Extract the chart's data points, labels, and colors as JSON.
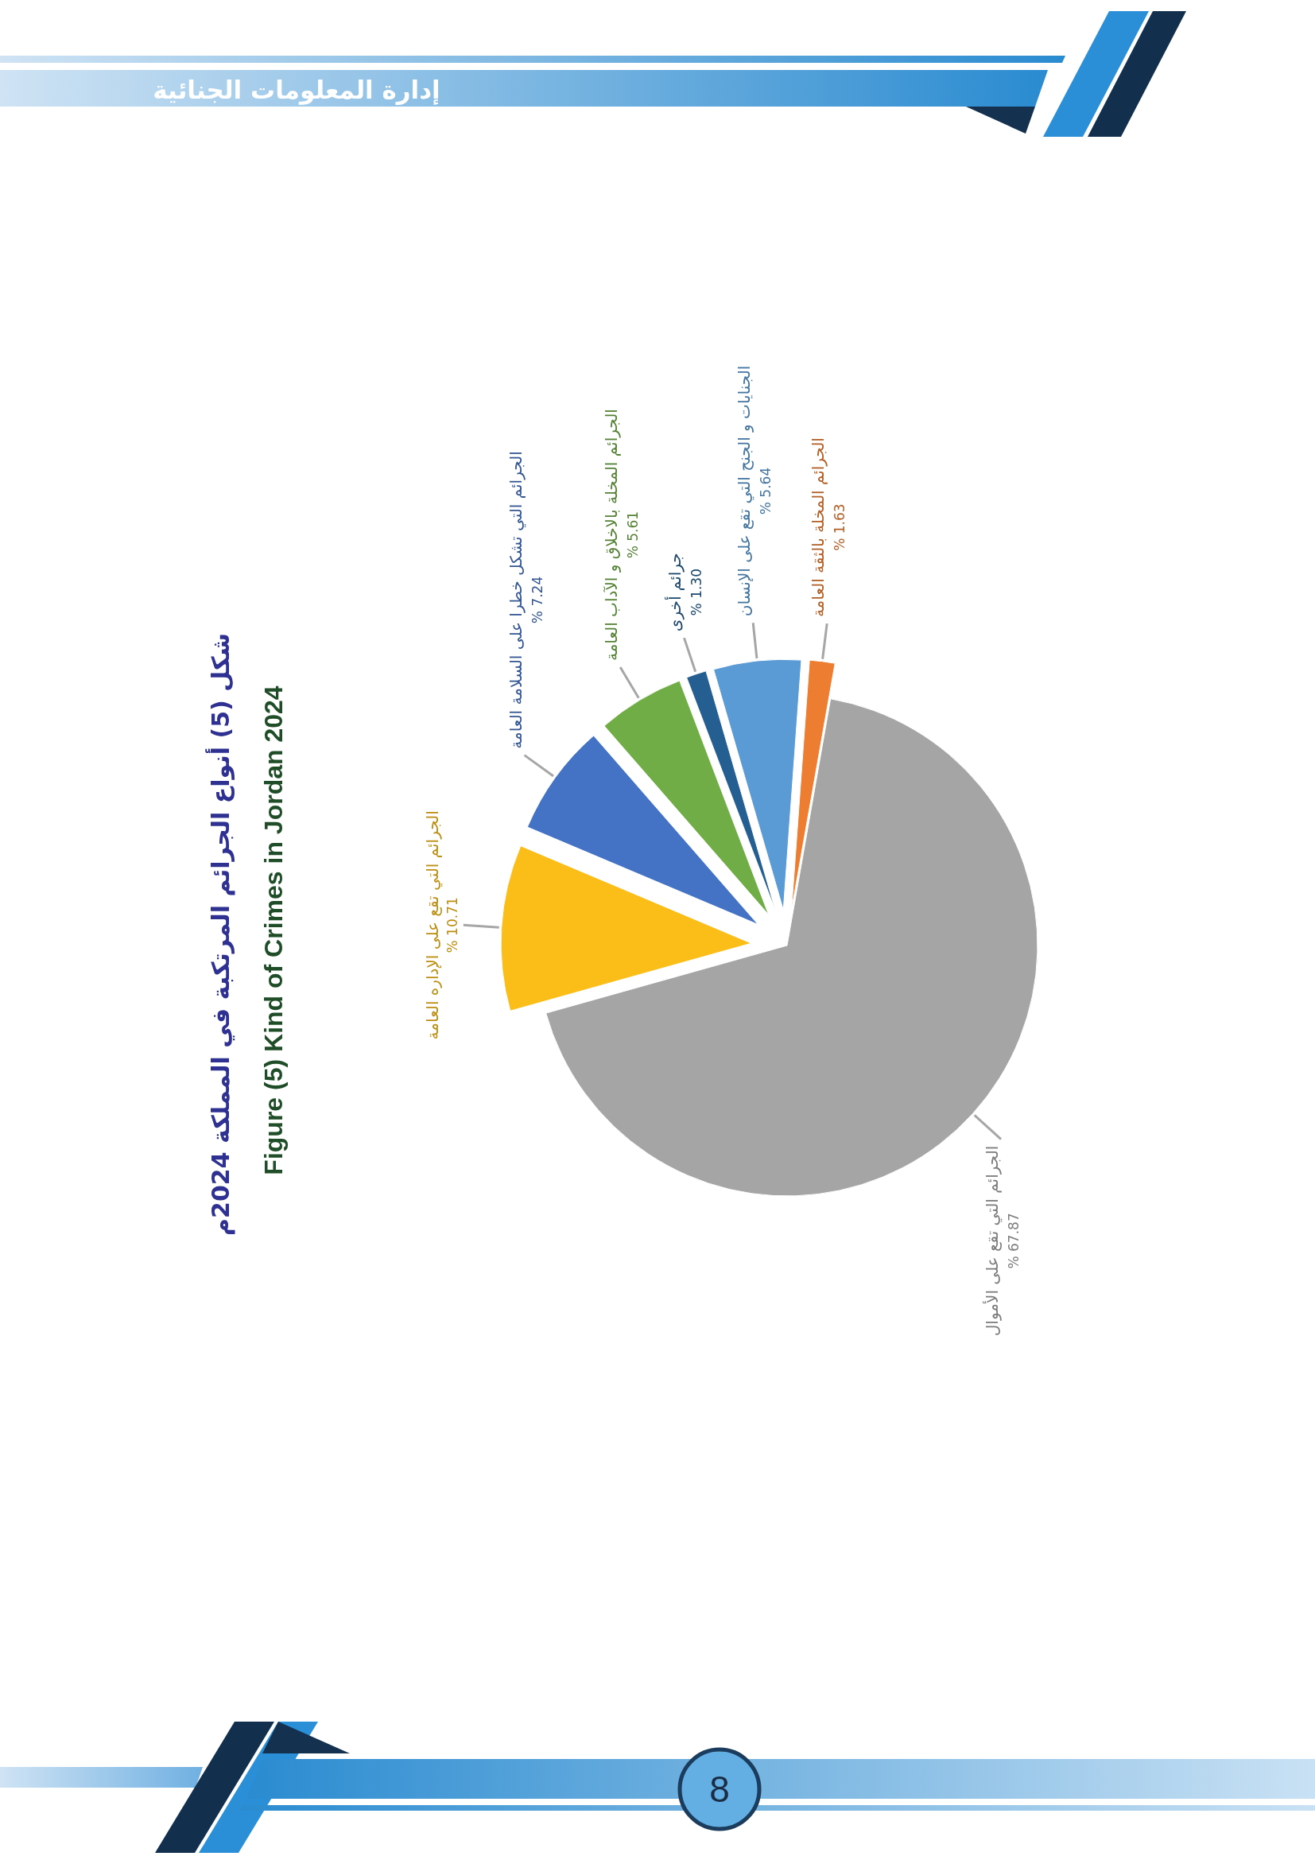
{
  "chart_data": {
    "type": "pie",
    "title": "شكل (5) أنواع الجرائم المرتكبة في المملكة 2024م",
    "subtitle": "Figure (5) Kind of Crimes in Jordan 2024",
    "categories": [
      "الجرائم التي تقع على الأموال",
      "الجرائم التي تقع على الإداره العامة",
      "الجرائم التي تشكل خطرا على السلامة العامة",
      "الجرائم المخلة بالاخلاق و الآداب العامة",
      "جرائم أخرى",
      "الجنايات و الجنح التي تقع على الإنسان",
      "الجرائم المخلة بالثقة العامة"
    ],
    "values": [
      67.87,
      10.71,
      7.24,
      5.61,
      1.3,
      5.64,
      1.63
    ],
    "value_labels": [
      "% 67.87",
      "% 10.71",
      "% 7.24",
      "% 5.61",
      "% 1.30",
      "% 5.64",
      "% 1.63"
    ],
    "colors": [
      "#a5a5a5",
      "#fbbd17",
      "#4472c4",
      "#70ad47",
      "#255e91",
      "#5b9bd5",
      "#ed7d31"
    ],
    "annotations": [
      "إدارة المعلومات الجنائية",
      "8"
    ]
  }
}
